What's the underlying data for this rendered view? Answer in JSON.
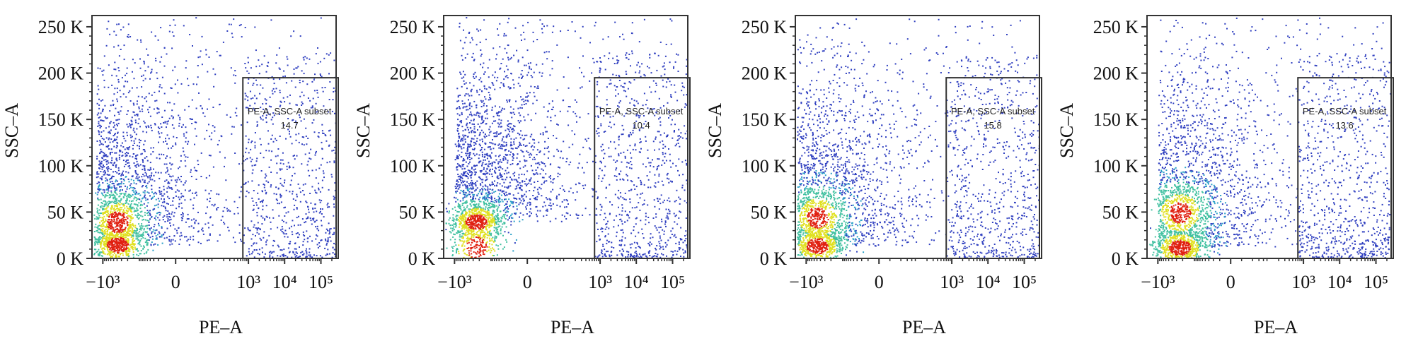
{
  "chart_data": [
    {
      "type": "scatter",
      "xlabel": "PE–A",
      "ylabel": "SSC–A",
      "x_ticks": [
        "−10³",
        "0",
        "10³",
        "10⁴",
        "10⁵"
      ],
      "y_ticks": [
        "0 K",
        "50 K",
        "100 K",
        "150 K",
        "200 K",
        "250 K"
      ],
      "ylim": [
        0,
        262144
      ],
      "gate": {
        "label": "PE-A, SSC-A subset",
        "value": "14.7",
        "x_min": 700,
        "y_min": 0,
        "y_max": 195000
      },
      "population": {
        "main_x": -400,
        "main_y": 15000,
        "secondary_y": 40000
      }
    },
    {
      "type": "scatter",
      "xlabel": "PE–A",
      "ylabel": "SSC–A",
      "x_ticks": [
        "−10³",
        "0",
        "10³",
        "10⁴",
        "10⁵"
      ],
      "y_ticks": [
        "0 K",
        "50 K",
        "100 K",
        "150 K",
        "200 K",
        "250 K"
      ],
      "ylim": [
        0,
        262144
      ],
      "gate": {
        "label": "PE-A, SSC-A subset",
        "value": "10.4",
        "x_min": 700,
        "y_min": 0,
        "y_max": 195000
      },
      "population": {
        "main_x": -250,
        "main_y": 40000,
        "secondary_y": 12000
      }
    },
    {
      "type": "scatter",
      "xlabel": "PE–A",
      "ylabel": "SSC–A",
      "x_ticks": [
        "−10³",
        "0",
        "10³",
        "10⁴",
        "10⁵"
      ],
      "y_ticks": [
        "0 K",
        "50 K",
        "100 K",
        "150 K",
        "200 K",
        "250 K"
      ],
      "ylim": [
        0,
        262144
      ],
      "gate": {
        "label": "PE-A, SSC-A subset",
        "value": "15.8",
        "x_min": 700,
        "y_min": 0,
        "y_max": 195000
      },
      "population": {
        "main_x": -500,
        "main_y": 14000,
        "secondary_y": 45000
      }
    },
    {
      "type": "scatter",
      "xlabel": "PE–A",
      "ylabel": "SSC–A",
      "x_ticks": [
        "−10³",
        "0",
        "10³",
        "10⁴",
        "10⁵"
      ],
      "y_ticks": [
        "0 K",
        "50 K",
        "100 K",
        "150 K",
        "200 K",
        "250 K"
      ],
      "ylim": [
        0,
        262144
      ],
      "gate": {
        "label": "PE-A, SSC-A subset",
        "value": "13.6",
        "x_min": 700,
        "y_min": 0,
        "y_max": 195000
      },
      "population": {
        "main_x": -250,
        "main_y": 12000,
        "secondary_y": 50000
      }
    }
  ],
  "colors": {
    "axis": "#333333",
    "gate": "#333333",
    "density_low": "#3040c0",
    "density_mid": "#40c0a0",
    "density_high": "#e0e020",
    "density_peak": "#e02010"
  }
}
